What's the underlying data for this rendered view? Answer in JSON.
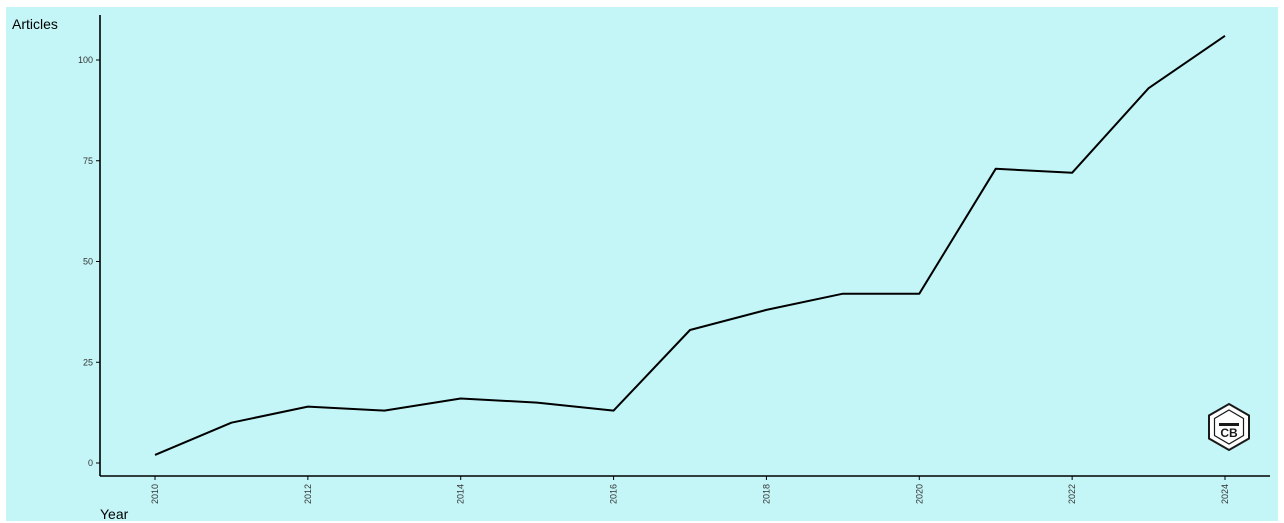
{
  "chart_data": {
    "type": "line",
    "xlabel": "Year",
    "ylabel": "Articles",
    "x": [
      2010,
      2011,
      2012,
      2013,
      2014,
      2015,
      2016,
      2017,
      2018,
      2019,
      2020,
      2021,
      2022,
      2023,
      2024
    ],
    "series": [
      {
        "values": [
          2,
          10,
          14,
          13,
          16,
          15,
          13,
          33,
          38,
          42,
          42,
          73,
          72,
          93,
          106
        ]
      }
    ],
    "xticks": [
      "2010",
      "2012",
      "2014",
      "2016",
      "2018",
      "2020",
      "2022",
      "2024"
    ],
    "yticks": [
      "0",
      "25",
      "50",
      "75",
      "100"
    ],
    "xlim": [
      2010,
      2024
    ],
    "ylim": [
      0,
      110
    ],
    "grid": false,
    "line_color": "#000000",
    "background_color": "#c4f6f8"
  },
  "logo": {
    "icon": "hexagon-logo-icon",
    "text": "CB"
  }
}
